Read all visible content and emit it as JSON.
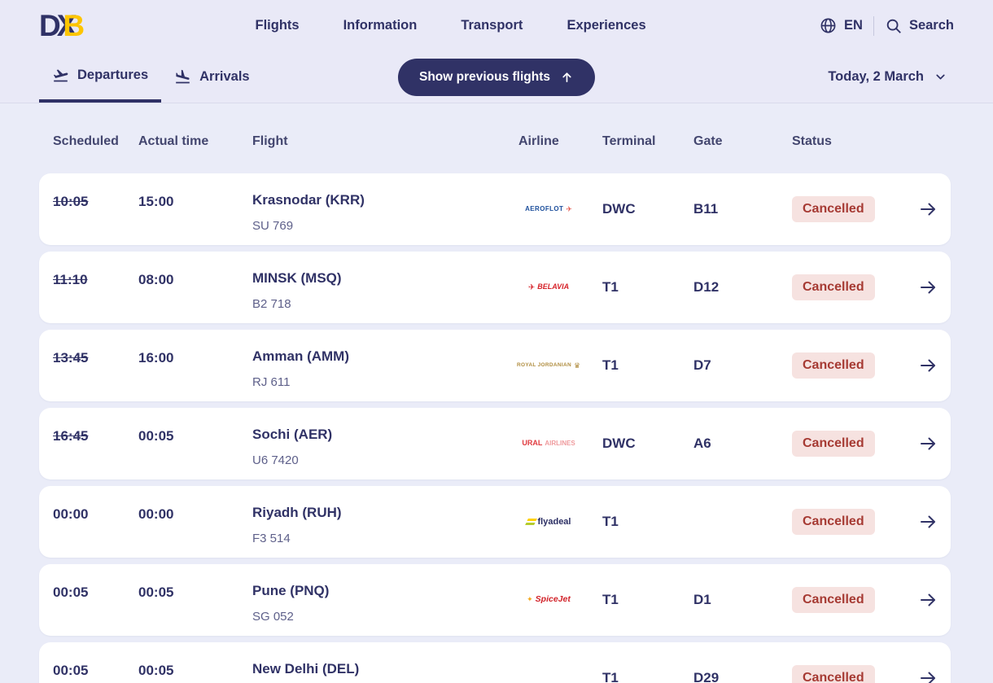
{
  "brand": {
    "d": "D",
    "x": "X",
    "b": "B"
  },
  "nav": {
    "items": [
      "Flights",
      "Information",
      "Transport",
      "Experiences"
    ],
    "language": "EN",
    "search_label": "Search"
  },
  "toolbar": {
    "departures_label": "Departures",
    "arrivals_label": "Arrivals",
    "show_previous_label": "Show previous flights",
    "date_label": "Today, 2 March"
  },
  "table": {
    "headers": [
      "Scheduled",
      "Actual time",
      "Flight",
      "Airline",
      "Terminal",
      "Gate",
      "Status"
    ]
  },
  "flights": [
    {
      "scheduled": "10:05",
      "time_changed": true,
      "actual": "15:00",
      "destination": "Krasnodar (KRR)",
      "flight_number": "SU 769",
      "airline": "Aeroflot",
      "logo": {
        "class": "aeroflot",
        "mark": "✈",
        "text": "AEROFLOT"
      },
      "terminal": "DWC",
      "gate": "B11",
      "status": "Cancelled"
    },
    {
      "scheduled": "11:10",
      "time_changed": true,
      "actual": "08:00",
      "destination": "MINSK (MSQ)",
      "flight_number": "B2 718",
      "airline": "Belavia",
      "logo": {
        "class": "belavia",
        "mark": "✈",
        "text": "BELAVIA"
      },
      "terminal": "T1",
      "gate": "D12",
      "status": "Cancelled"
    },
    {
      "scheduled": "13:45",
      "time_changed": true,
      "actual": "16:00",
      "destination": "Amman (AMM)",
      "flight_number": "RJ 611",
      "airline": "Royal Jordanian",
      "logo": {
        "class": "rj",
        "mark": "♛",
        "text": "ROYAL JORDANIAN"
      },
      "terminal": "T1",
      "gate": "D7",
      "status": "Cancelled"
    },
    {
      "scheduled": "16:45",
      "time_changed": true,
      "actual": "00:05",
      "destination": "Sochi (AER)",
      "flight_number": "U6 7420",
      "airline": "Ural Airlines",
      "logo": {
        "class": "ural",
        "text": "URAL",
        "text2": "AIRLINES"
      },
      "terminal": "DWC",
      "gate": "A6",
      "status": "Cancelled"
    },
    {
      "scheduled": "00:00",
      "time_changed": false,
      "actual": "00:00",
      "destination": "Riyadh (RUH)",
      "flight_number": "F3 514",
      "airline": "flyadeal",
      "logo": {
        "class": "flyadeal",
        "bars": true,
        "text": "flyadeal"
      },
      "terminal": "T1",
      "gate": "",
      "status": "Cancelled"
    },
    {
      "scheduled": "00:05",
      "time_changed": false,
      "actual": "00:05",
      "destination": "Pune (PNQ)",
      "flight_number": "SG 052",
      "airline": "SpiceJet",
      "logo": {
        "class": "spicejet",
        "mark": "✦",
        "text": "SpiceJet"
      },
      "terminal": "T1",
      "gate": "D1",
      "status": "Cancelled"
    },
    {
      "scheduled": "00:05",
      "time_changed": false,
      "actual": "00:05",
      "destination": "New Delhi (DEL)",
      "flight_number": "",
      "airline": "",
      "logo": null,
      "terminal": "T1",
      "gate": "D29",
      "status": "Cancelled"
    }
  ],
  "colors": {
    "navy": "#303266",
    "brand_yellow": "#fdc500",
    "page_bg": "#eaecf8",
    "header_bg": "#e9e9f7",
    "card_bg": "#ffffff",
    "badge_bg": "#f6e2e0",
    "badge_text": "#a63a33"
  }
}
